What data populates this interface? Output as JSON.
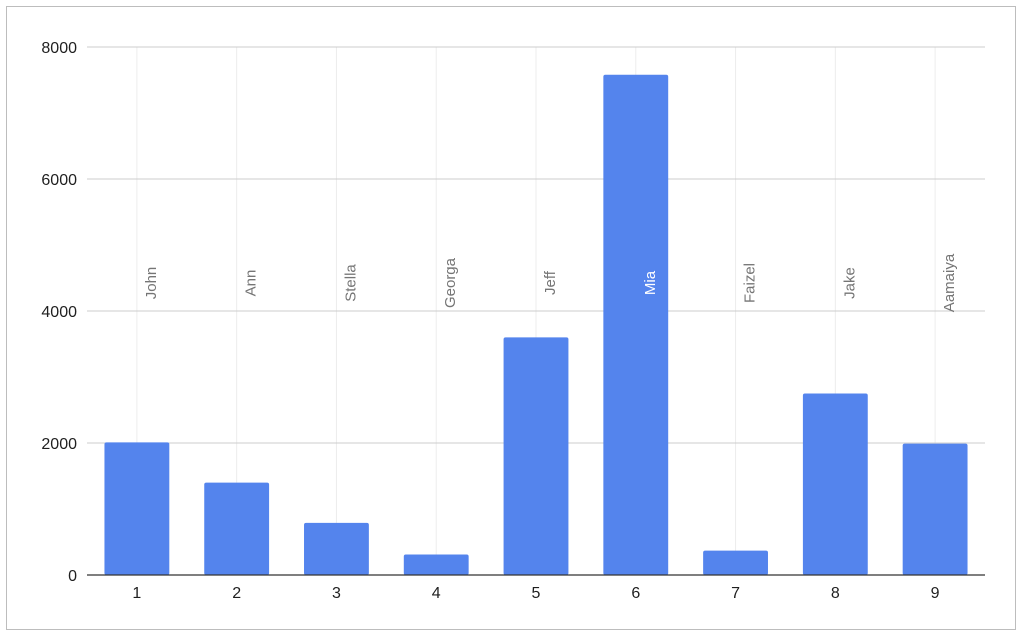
{
  "chart_data": {
    "type": "bar",
    "categories": [
      "1",
      "2",
      "3",
      "4",
      "5",
      "6",
      "7",
      "8",
      "9"
    ],
    "values": [
      2010,
      1400,
      790,
      310,
      3600,
      7580,
      370,
      2750,
      1990
    ],
    "data_labels": [
      "John",
      "Ann",
      "Stella",
      "Georga",
      "Jeff",
      "Mia",
      "Faizel",
      "Jake",
      "Aamaiya"
    ],
    "y_ticks": [
      0,
      2000,
      4000,
      6000,
      8000
    ],
    "ylim": [
      0,
      8000
    ],
    "title": "",
    "xlabel": "",
    "ylabel": "",
    "grid": true,
    "bar_color": "#5484ed"
  }
}
